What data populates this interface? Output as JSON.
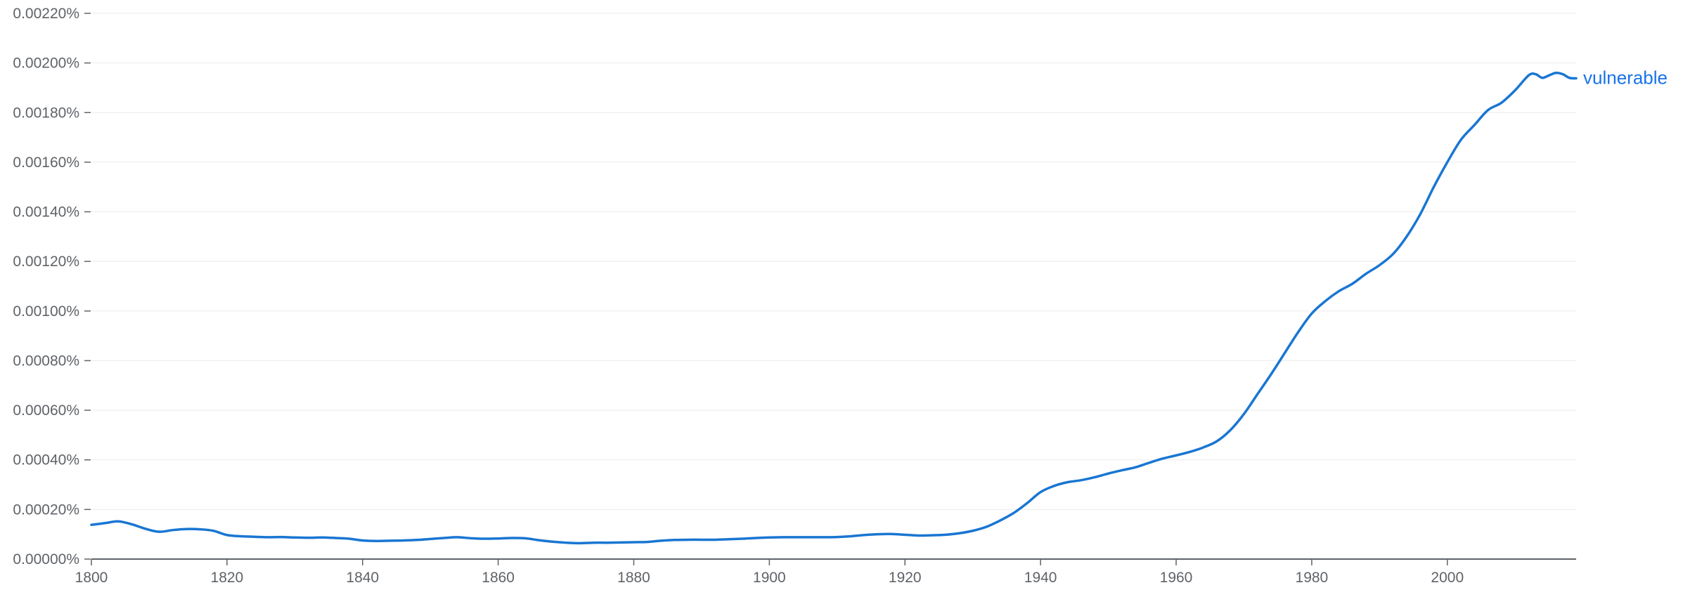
{
  "chart_data": {
    "type": "line",
    "title": "",
    "xlabel": "",
    "ylabel": "",
    "x_ticks": [
      "1800",
      "1820",
      "1840",
      "1860",
      "1880",
      "1900",
      "1920",
      "1940",
      "1960",
      "1980",
      "2000"
    ],
    "y_ticks": [
      "0.00000%",
      "0.00020%",
      "0.00040%",
      "0.00060%",
      "0.00080%",
      "0.00100%",
      "0.00120%",
      "0.00140%",
      "0.00160%",
      "0.00180%",
      "0.00200%",
      "0.00220%"
    ],
    "xlim": [
      1800,
      2019
    ],
    "ylim": [
      0,
      0.0022
    ],
    "y_unit": "%",
    "grid": true,
    "colors": {
      "series": "#1976d2",
      "label": "#1a73e8",
      "grid": "#ebebeb",
      "axis": "#5f6368"
    },
    "series": [
      {
        "name": "vulnerable",
        "x": [
          1800,
          1802,
          1804,
          1806,
          1808,
          1810,
          1812,
          1814,
          1816,
          1818,
          1820,
          1822,
          1824,
          1826,
          1828,
          1830,
          1832,
          1834,
          1836,
          1838,
          1840,
          1842,
          1844,
          1846,
          1848,
          1850,
          1852,
          1854,
          1856,
          1858,
          1860,
          1862,
          1864,
          1866,
          1868,
          1870,
          1872,
          1874,
          1876,
          1878,
          1880,
          1882,
          1884,
          1886,
          1888,
          1890,
          1892,
          1894,
          1896,
          1898,
          1900,
          1902,
          1904,
          1906,
          1908,
          1910,
          1912,
          1914,
          1916,
          1918,
          1920,
          1922,
          1924,
          1926,
          1928,
          1930,
          1932,
          1934,
          1936,
          1938,
          1940,
          1942,
          1944,
          1946,
          1948,
          1950,
          1952,
          1954,
          1956,
          1958,
          1960,
          1962,
          1964,
          1966,
          1968,
          1970,
          1972,
          1974,
          1976,
          1978,
          1980,
          1982,
          1984,
          1986,
          1988,
          1990,
          1992,
          1994,
          1996,
          1998,
          2000,
          2002,
          2004,
          2006,
          2008,
          2010,
          2012,
          2013,
          2014,
          2015,
          2016,
          2017,
          2018,
          2019
        ],
        "y": [
          0.000138,
          0.000145,
          0.000152,
          0.00014,
          0.000122,
          0.00011,
          0.000117,
          0.000121,
          0.00012,
          0.000114,
          9.7e-05,
          9.2e-05,
          9e-05,
          8.8e-05,
          8.9e-05,
          8.7e-05,
          8.6e-05,
          8.7e-05,
          8.5e-05,
          8.2e-05,
          7.5e-05,
          7.3e-05,
          7.4e-05,
          7.5e-05,
          7.7e-05,
          8.1e-05,
          8.5e-05,
          8.8e-05,
          8.4e-05,
          8.2e-05,
          8.3e-05,
          8.5e-05,
          8.4e-05,
          7.6e-05,
          7e-05,
          6.6e-05,
          6.4e-05,
          6.6e-05,
          6.6e-05,
          6.7e-05,
          6.8e-05,
          6.9e-05,
          7.4e-05,
          7.7e-05,
          7.8e-05,
          7.8e-05,
          7.8e-05,
          8e-05,
          8.2e-05,
          8.5e-05,
          8.7e-05,
          8.8e-05,
          8.8e-05,
          8.8e-05,
          8.8e-05,
          8.9e-05,
          9.2e-05,
          9.7e-05,
          0.0001,
          0.000101,
          9.8e-05,
          9.5e-05,
          9.6e-05,
          9.8e-05,
          0.000104,
          0.000114,
          0.00013,
          0.000155,
          0.000185,
          0.000225,
          0.00027,
          0.000295,
          0.00031,
          0.000318,
          0.00033,
          0.000345,
          0.000358,
          0.00037,
          0.000388,
          0.000405,
          0.000418,
          0.000432,
          0.00045,
          0.000475,
          0.00052,
          0.000585,
          0.000665,
          0.000745,
          0.00083,
          0.000915,
          0.00099,
          0.00104,
          0.00108,
          0.00111,
          0.00115,
          0.001185,
          0.00123,
          0.0013,
          0.00139,
          0.0015,
          0.0016,
          0.00169,
          0.00175,
          0.00181,
          0.00184,
          0.00189,
          0.00195,
          0.001955,
          0.00194,
          0.00195,
          0.00196,
          0.001955,
          0.00194,
          0.001938
        ]
      }
    ]
  }
}
